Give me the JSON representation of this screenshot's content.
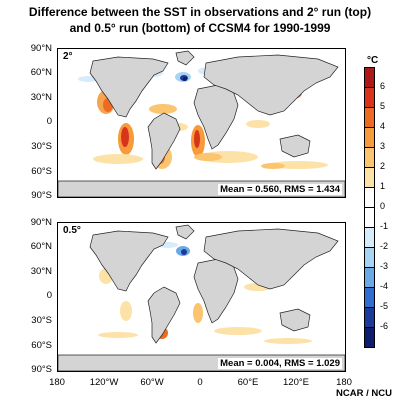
{
  "title_line1": "Difference between the SST in observations and 2° run (top)",
  "title_line2": "and 0.5° run (bottom) of CCSM4 for 1990-1999",
  "top_panel": {
    "label": "2°",
    "stats": "Mean = 0.560, RMS = 1.434"
  },
  "bottom_panel": {
    "label": "0.5°",
    "stats": "Mean = 0.004, RMS = 1.029"
  },
  "lat_labels_top": [
    "90°N",
    "60°N",
    "30°N",
    "0",
    "30°S",
    "60°S",
    "90°S"
  ],
  "lat_labels_bottom": [
    "90°N",
    "60°N",
    "30°N",
    "0",
    "30°S",
    "60°S",
    "90°S"
  ],
  "lon_labels": [
    "180",
    "120°W",
    "60°W",
    "0",
    "60°E",
    "120°E",
    "180"
  ],
  "colorbar": {
    "unit": "°C",
    "labels": [
      "6",
      "5",
      "4",
      "3",
      "2",
      "1",
      "0",
      "-1",
      "-2",
      "-3",
      "-4",
      "-5",
      "-6"
    ],
    "colors": [
      "#b01818",
      "#d8341c",
      "#ee6a22",
      "#f69a3c",
      "#fbc46e",
      "#fde2a8",
      "#ffffff",
      "#ffffff",
      "#d6ecfa",
      "#a8d4f4",
      "#6aa8e6",
      "#2e6ed0",
      "#1c3a9c",
      "#0e1e6e"
    ]
  },
  "credit": "NCAR / NCU"
}
